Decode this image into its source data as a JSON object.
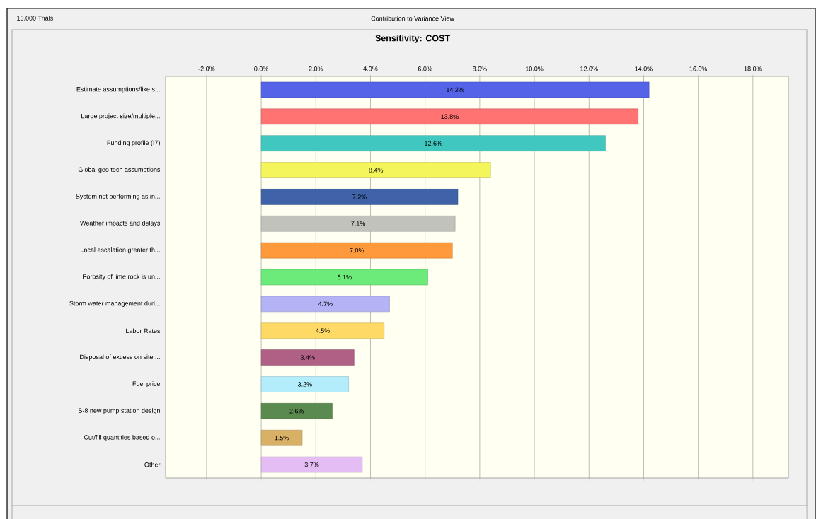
{
  "chart_data": {
    "type": "bar",
    "orientation": "horizontal",
    "title": "Sensitivity: COST",
    "subtitle": "Contribution to Variance View",
    "annotations": [
      "10,000 Trials"
    ],
    "categories": [
      "Estimate assumptions/like s...",
      "Large project size/multiple...",
      "Funding profile (I7)",
      "Global geo tech assumptions",
      "System not performing as in...",
      "Weather impacts and delays",
      "Local escalation greater th...",
      "Porosity of lime rock is un...",
      "Storm water management duri...",
      "Labor Rates",
      "Disposal of excess on site ...",
      "Fuel price",
      "S-8 new pump station design",
      "Cut/fill quantities based o...",
      "Other"
    ],
    "values": [
      14.2,
      13.8,
      12.6,
      8.4,
      7.2,
      7.1,
      7.0,
      6.1,
      4.7,
      4.5,
      3.4,
      3.2,
      2.6,
      1.5,
      3.7
    ],
    "value_labels": [
      "14.2%",
      "13.8%",
      "12.6%",
      "8.4%",
      "7.2%",
      "7.1%",
      "7.0%",
      "6.1%",
      "4.7%",
      "4.5%",
      "3.4%",
      "3.2%",
      "2.6%",
      "1.5%",
      "3.7%"
    ],
    "colors": [
      "#5463e8",
      "#ff7373",
      "#40c8c0",
      "#f4f55a",
      "#3f62a8",
      "#c2c2bd",
      "#ff9a3c",
      "#6ceb7a",
      "#b3b3f5",
      "#ffd966",
      "#b06084",
      "#b3ecfb",
      "#5a8a50",
      "#d8b066",
      "#e4bdf5"
    ],
    "xlim": [
      -3.5,
      19.3
    ],
    "xticks": [
      {
        "value": -2,
        "label": "-2.0%"
      },
      {
        "value": 0,
        "label": "0.0%"
      },
      {
        "value": 2,
        "label": "2.0%"
      },
      {
        "value": 4,
        "label": "4.0%"
      },
      {
        "value": 6,
        "label": "6.0%"
      },
      {
        "value": 8,
        "label": "8.0%"
      },
      {
        "value": 10,
        "label": "10.0%"
      },
      {
        "value": 12,
        "label": "12.0%"
      },
      {
        "value": 14,
        "label": "14.0%"
      },
      {
        "value": 16,
        "label": "16.0%"
      },
      {
        "value": 18,
        "label": "18.0%"
      }
    ],
    "grid": "x"
  }
}
